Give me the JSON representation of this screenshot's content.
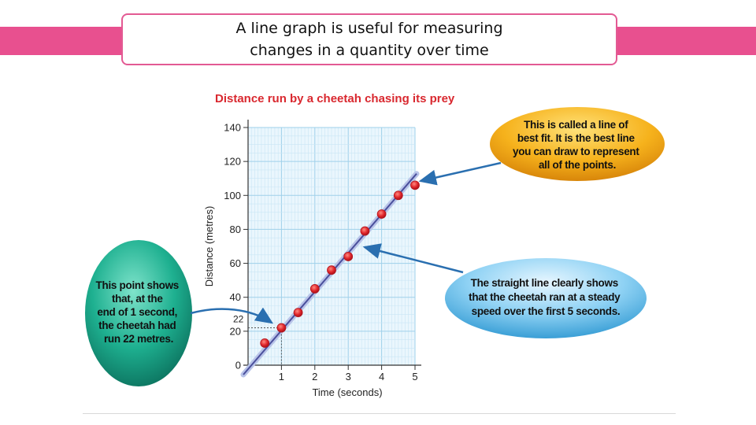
{
  "slide": {
    "title_line1": "A line graph is useful for measuring",
    "title_line2": "changes in a quantity over time",
    "accent_color": "#e8508f"
  },
  "chart_data": {
    "type": "scatter",
    "title": "Distance run by a cheetah chasing its prey",
    "xlabel": "Time (seconds)",
    "ylabel": "Distance (metres)",
    "xlim": [
      0,
      5
    ],
    "ylim": [
      0,
      140
    ],
    "x_ticks": [
      "1",
      "2",
      "3",
      "4",
      "5"
    ],
    "y_ticks": [
      "0",
      "20",
      "40",
      "60",
      "80",
      "100",
      "120",
      "140"
    ],
    "grid": true,
    "points": [
      {
        "x": 0.5,
        "y": 13
      },
      {
        "x": 1.0,
        "y": 22
      },
      {
        "x": 1.5,
        "y": 31
      },
      {
        "x": 2.0,
        "y": 45
      },
      {
        "x": 2.5,
        "y": 56
      },
      {
        "x": 3.0,
        "y": 64
      },
      {
        "x": 3.5,
        "y": 79
      },
      {
        "x": 4.0,
        "y": 89
      },
      {
        "x": 4.5,
        "y": 100
      },
      {
        "x": 5.0,
        "y": 106
      }
    ],
    "best_fit": {
      "x": [
        0,
        5
      ],
      "y": [
        0,
        110
      ]
    },
    "highlight": {
      "x": 1,
      "y": 22,
      "label": "22"
    },
    "point_color": "#e0262b",
    "line_color": "#4a4f9c"
  },
  "callouts": {
    "left": [
      "This point shows",
      "that, at the",
      "end of 1 second,",
      "the cheetah had",
      "run 22 metres."
    ],
    "top_right": [
      "This is called a line of",
      "best fit. It is the best line",
      "you can draw to represent",
      "all of the points."
    ],
    "bottom_right": [
      "The straight line clearly shows",
      "that the cheetah ran at a steady",
      "speed over the first 5 seconds."
    ]
  }
}
